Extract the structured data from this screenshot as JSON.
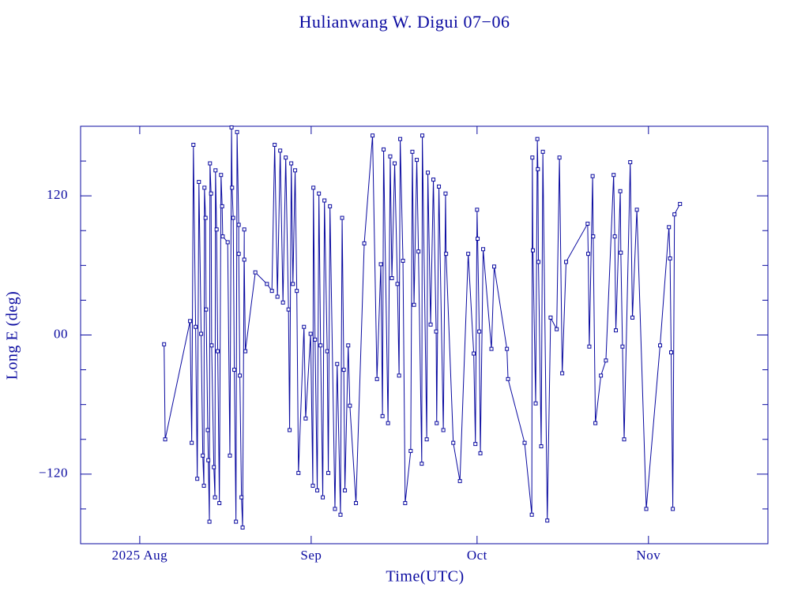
{
  "chart_data": {
    "type": "line",
    "title": "Hulianwang W. Digui 07−06",
    "xlabel": "Time(UTC)",
    "ylabel": "Long E (deg)",
    "color": "#0a0aa0",
    "xlim": [
      -10.7,
      113.6
    ],
    "xticks": [
      {
        "value": 0,
        "label": "2025 Aug"
      },
      {
        "value": 31,
        "label": "Sep"
      },
      {
        "value": 61,
        "label": "Oct"
      },
      {
        "value": 92,
        "label": "Nov"
      }
    ],
    "ylim": [
      -180,
      180
    ],
    "yticks": [
      {
        "value": -120,
        "label": "−120"
      },
      {
        "value": 0,
        "label": "00"
      },
      {
        "value": 120,
        "label": "120"
      }
    ],
    "yminorticks": [
      -150,
      -90,
      -60,
      -30,
      30,
      60,
      90,
      150
    ],
    "x": [
      4.4,
      4.6,
      9.1,
      9.4,
      9.7,
      10.1,
      10.4,
      10.7,
      11.1,
      11.4,
      11.6,
      11.7,
      11.9,
      12.0,
      12.3,
      12.4,
      12.6,
      12.7,
      12.9,
      13.0,
      13.4,
      13.6,
      13.7,
      13.9,
      14.1,
      14.4,
      14.7,
      14.9,
      15.0,
      15.9,
      16.3,
      16.6,
      16.7,
      16.9,
      17.1,
      17.4,
      17.6,
      17.9,
      17.9,
      18.1,
      18.4,
      18.6,
      18.9,
      18.9,
      19.1,
      20.9,
      23.0,
      23.9,
      24.4,
      24.9,
      25.4,
      25.9,
      26.4,
      26.9,
      27.1,
      27.4,
      27.7,
      28.1,
      28.4,
      28.7,
      29.7,
      30.0,
      30.9,
      31.3,
      31.4,
      31.7,
      32.1,
      32.4,
      32.7,
      33.1,
      33.4,
      33.9,
      34.1,
      34.4,
      35.3,
      35.7,
      36.3,
      36.6,
      36.9,
      37.1,
      37.7,
      38.0,
      39.1,
      40.6,
      42.1,
      42.9,
      43.6,
      43.9,
      44.1,
      44.9,
      45.3,
      45.6,
      46.1,
      46.6,
      46.9,
      47.1,
      47.6,
      48.0,
      49.0,
      49.3,
      49.6,
      50.1,
      50.4,
      51.0,
      51.1,
      51.9,
      52.1,
      52.6,
      53.1,
      53.6,
      53.7,
      54.1,
      54.9,
      55.3,
      55.4,
      56.7,
      57.9,
      59.4,
      60.4,
      60.7,
      61.0,
      61.1,
      61.4,
      61.6,
      62.1,
      63.6,
      64.1,
      66.4,
      66.6,
      69.6,
      70.9,
      71.0,
      71.1,
      71.6,
      71.9,
      72.0,
      72.1,
      72.6,
      72.9,
      73.7,
      74.3,
      75.4,
      75.9,
      76.4,
      77.1,
      81.0,
      81.1,
      81.3,
      81.9,
      82.0,
      82.4,
      83.4,
      84.3,
      85.7,
      85.9,
      86.1,
      86.9,
      87.0,
      87.3,
      87.6,
      88.7,
      89.1,
      89.9,
      91.6,
      94.1,
      95.7,
      95.9,
      96.1,
      96.4,
      96.7,
      97.7
    ],
    "values": [
      -8,
      -90,
      12,
      -93,
      164,
      7,
      -124,
      132,
      1,
      -104,
      -130,
      127,
      101,
      22,
      -82,
      -108,
      -161,
      148,
      122,
      -9,
      -114,
      -140,
      142,
      91,
      -14,
      -145,
      138,
      111,
      85,
      80,
      -104,
      179,
      127,
      101,
      -30,
      -161,
      175,
      95,
      70,
      -35,
      -140,
      -166,
      91,
      65,
      -14,
      54,
      44,
      38,
      164,
      33,
      159,
      28,
      153,
      22,
      -82,
      148,
      44,
      142,
      38,
      -119,
      7,
      -72,
      1,
      -130,
      127,
      -4,
      -134,
      122,
      -9,
      -140,
      116,
      -14,
      -119,
      111,
      -150,
      -25,
      -155,
      101,
      -30,
      -134,
      -9,
      -61,
      -145,
      79,
      172,
      -38,
      61,
      -70,
      160,
      -76,
      154,
      49,
      148,
      44,
      -35,
      169,
      64,
      -145,
      -100,
      158,
      26,
      151,
      72,
      -111,
      172,
      -90,
      140,
      9,
      134,
      3,
      -76,
      128,
      -82,
      122,
      70,
      -93,
      -126,
      70,
      -16,
      -94,
      108,
      83,
      3,
      -102,
      74,
      -12,
      59,
      -12,
      -38,
      -93,
      -155,
      153,
      73,
      -59,
      169,
      143,
      63,
      -96,
      158,
      -160,
      15,
      5,
      153,
      -33,
      63,
      96,
      70,
      -10,
      137,
      85,
      -76,
      -35,
      -22,
      138,
      85,
      4,
      124,
      71,
      -10,
      -90,
      149,
      15,
      108,
      -150,
      -9,
      93,
      66,
      -15,
      -150,
      104,
      113
    ]
  }
}
